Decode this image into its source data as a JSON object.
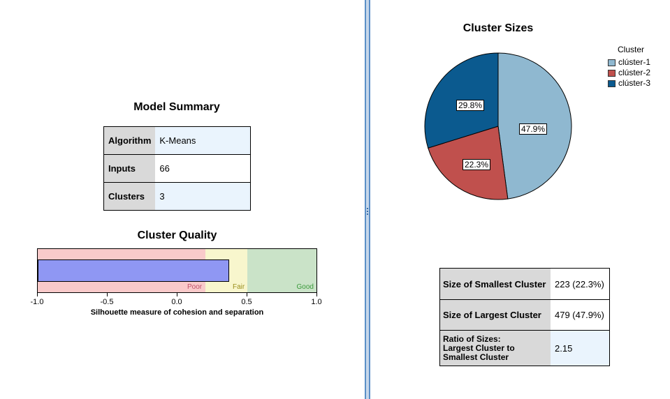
{
  "model_summary": {
    "title": "Model Summary",
    "rows": [
      {
        "key": "Algorithm",
        "value": "K-Means"
      },
      {
        "key": "Inputs",
        "value": "66"
      },
      {
        "key": "Clusters",
        "value": "3"
      }
    ]
  },
  "cluster_quality": {
    "title": "Cluster Quality",
    "silhouette_value": 0.37,
    "zones": [
      "Poor",
      "Fair",
      "Good"
    ],
    "axis_ticks": [
      "-1.0",
      "-0.5",
      "0.0",
      "0.5",
      "1.0"
    ],
    "axis_label": "Silhouette measure of cohesion and separation",
    "colors": {
      "poor": "#f9caca",
      "fair": "#f8f6cd",
      "good": "#cae3c8",
      "bar": "#8f97f3",
      "poor_text": "#c0506a",
      "fair_text": "#9a8f1e",
      "good_text": "#3a9a3a"
    }
  },
  "cluster_sizes": {
    "title": "Cluster Sizes",
    "legend_title": "Cluster",
    "legend": [
      "clúster-1",
      "clúster-2",
      "clúster-3"
    ]
  },
  "chart_data": {
    "type": "pie",
    "title": "Cluster Sizes",
    "categories": [
      "clúster-1",
      "clúster-2",
      "clúster-3"
    ],
    "values": [
      47.9,
      22.3,
      29.8
    ],
    "labels": [
      "47.9%",
      "22.3%",
      "29.8%"
    ],
    "colors": [
      "#8fb8d0",
      "#c0504d",
      "#0b5a8f"
    ],
    "legend_position": "top-right"
  },
  "size_table": {
    "rows": [
      {
        "key": "Size of Smallest Cluster",
        "value": "223 (22.3%)"
      },
      {
        "key": "Size of Largest Cluster",
        "value": "479 (47.9%)"
      },
      {
        "key_lines": [
          "Ratio of Sizes:",
          "Largest Cluster to",
          "Smallest Cluster"
        ],
        "value": "2.15"
      }
    ]
  }
}
